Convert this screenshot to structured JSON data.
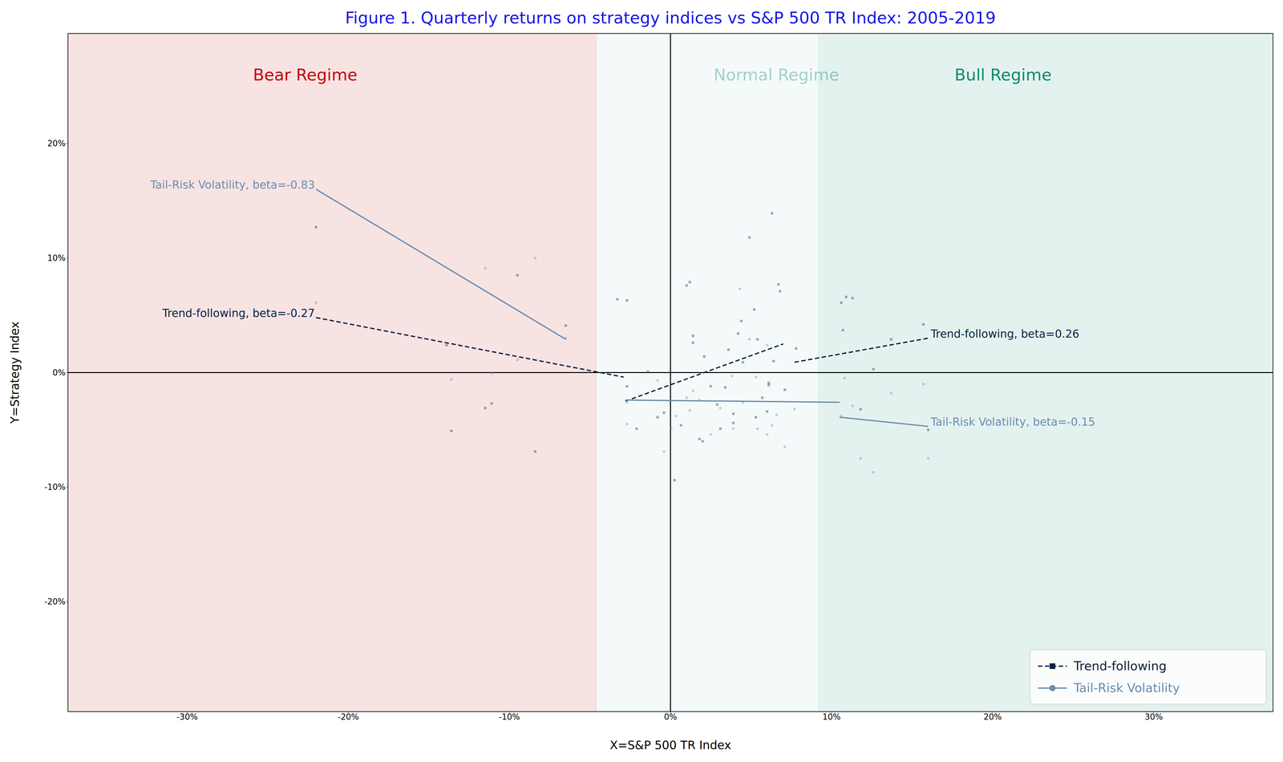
{
  "chart_data": {
    "type": "scatter",
    "title": "Figure 1. Quarterly returns on strategy indices vs S&P 500 TR Index: 2005-2019",
    "xlabel": "X=S&P 500 TR Index",
    "ylabel": "Y=Strategy Index",
    "xlim": [
      -37.4,
      37.4
    ],
    "ylim": [
      -29.6,
      29.6
    ],
    "xticks": [
      {
        "value": -30,
        "label": "-30%"
      },
      {
        "value": -20,
        "label": "-20%"
      },
      {
        "value": -10,
        "label": "-10%"
      },
      {
        "value": 0,
        "label": "0%"
      },
      {
        "value": 10,
        "label": "10%"
      },
      {
        "value": 20,
        "label": "20%"
      },
      {
        "value": 30,
        "label": "30%"
      }
    ],
    "yticks": [
      {
        "value": -20,
        "label": "-20%"
      },
      {
        "value": -10,
        "label": "-10%"
      },
      {
        "value": 0,
        "label": "0%"
      },
      {
        "value": 10,
        "label": "10%"
      },
      {
        "value": 20,
        "label": "20%"
      }
    ],
    "legend": "lower right",
    "regimes": [
      {
        "label": "Bear Regime",
        "x": [
          -37.4,
          -4.6
        ],
        "color": "#c00000"
      },
      {
        "label": "Normal Regime",
        "x": [
          -4.6,
          9.2
        ],
        "color": "#9ed3c8"
      },
      {
        "label": "Bull Regime",
        "x": [
          9.2,
          37.4
        ],
        "color": "#0b8a6f"
      }
    ],
    "series": [
      {
        "name": "Trend-following",
        "color": "#0d2240",
        "marker": "square",
        "line_style": "dashed",
        "x": [
          -22.0,
          -9.5,
          -6.5,
          -13.9,
          -11.1,
          -11.5,
          -13.6,
          -8.4,
          -3.3,
          -2.7,
          -2.7,
          -1.4,
          -2.1,
          -0.8,
          -0.4,
          0.25,
          0.66,
          1.0,
          1.2,
          1.4,
          1.4,
          1.8,
          2.0,
          2.1,
          2.5,
          2.9,
          3.1,
          3.4,
          3.6,
          3.9,
          3.9,
          4.2,
          4.4,
          4.5,
          4.9,
          5.2,
          5.4,
          5.3,
          5.7,
          6.0,
          6.1,
          6.1,
          6.3,
          6.4,
          6.7,
          6.8,
          7.1,
          7.8,
          10.6,
          10.9,
          10.7,
          11.3,
          11.8,
          12.6,
          13.7,
          15.7,
          16.0
        ],
        "values": [
          12.7,
          8.5,
          4.1,
          2.4,
          -2.7,
          -3.1,
          -5.1,
          -6.9,
          6.4,
          6.3,
          -1.2,
          0.07,
          -4.9,
          -3.9,
          -3.5,
          -9.4,
          -4.6,
          7.6,
          7.9,
          3.2,
          2.6,
          -5.8,
          -6.0,
          1.4,
          -1.2,
          -2.8,
          -4.9,
          -1.3,
          2.0,
          -3.6,
          -4.4,
          3.4,
          4.5,
          0.9,
          11.8,
          5.5,
          2.9,
          -3.9,
          -2.2,
          -3.4,
          -0.9,
          -1.1,
          13.9,
          1.0,
          7.7,
          7.1,
          -1.5,
          2.1,
          6.1,
          6.6,
          3.7,
          6.5,
          -3.2,
          0.3,
          2.9,
          4.2,
          -5.0
        ]
      },
      {
        "name": "Tail-Risk Volatility",
        "color": "#6b8cae",
        "marker": "circle",
        "line_style": "solid",
        "x": [
          -22.0,
          -11.5,
          -8.4,
          -6.5,
          -9.5,
          -13.6,
          -11.1,
          -2.7,
          -2.7,
          -0.8,
          -0.4,
          0.05,
          0.35,
          1.0,
          1.2,
          1.4,
          1.8,
          2.5,
          3.1,
          3.8,
          3.9,
          4.3,
          4.5,
          4.9,
          5.3,
          5.4,
          6.0,
          6.0,
          6.3,
          6.6,
          7.1,
          7.7,
          10.6,
          10.8,
          11.3,
          11.8,
          12.6,
          13.7,
          15.7,
          16.0
        ],
        "values": [
          6.1,
          9.1,
          10.0,
          3.0,
          1.1,
          -0.6,
          -0.07,
          -2.6,
          -4.5,
          -0.7,
          -6.9,
          -4.9,
          -3.8,
          -2.2,
          -3.3,
          -1.6,
          -2.4,
          -5.4,
          -3.1,
          -0.3,
          -4.9,
          7.3,
          -2.6,
          2.9,
          -0.4,
          -4.9,
          -5.4,
          2.4,
          -4.6,
          -3.7,
          -6.5,
          -3.2,
          -3.8,
          -0.5,
          -2.9,
          -7.5,
          -8.7,
          -1.8,
          -1.0,
          -7.5
        ]
      }
    ],
    "fits": [
      {
        "series": "Tail-Risk Volatility",
        "label": "Tail-Risk Volatility, beta=-0.83",
        "x": [
          -22.0,
          -6.5
        ],
        "values": [
          16.0,
          2.9
        ]
      },
      {
        "series": "Trend-following",
        "label": "Trend-following, beta=-0.27",
        "x": [
          -22.0,
          -2.9
        ],
        "values": [
          4.8,
          -0.4
        ]
      },
      {
        "series": "Trend-following",
        "x": [
          -2.8,
          7.0
        ],
        "values": [
          -2.5,
          2.5
        ]
      },
      {
        "series": "Tail-Risk Volatility",
        "x": [
          -2.8,
          10.5
        ],
        "values": [
          -2.4,
          -2.6
        ]
      },
      {
        "series": "Trend-following",
        "label": "Trend-following, beta=0.26",
        "x": [
          7.7,
          16.0
        ],
        "values": [
          0.9,
          3.0
        ]
      },
      {
        "series": "Tail-Risk Volatility",
        "label": "Tail-Risk Volatility, beta=-0.15",
        "x": [
          10.5,
          16.0
        ],
        "values": [
          -3.9,
          -4.7
        ]
      }
    ]
  }
}
